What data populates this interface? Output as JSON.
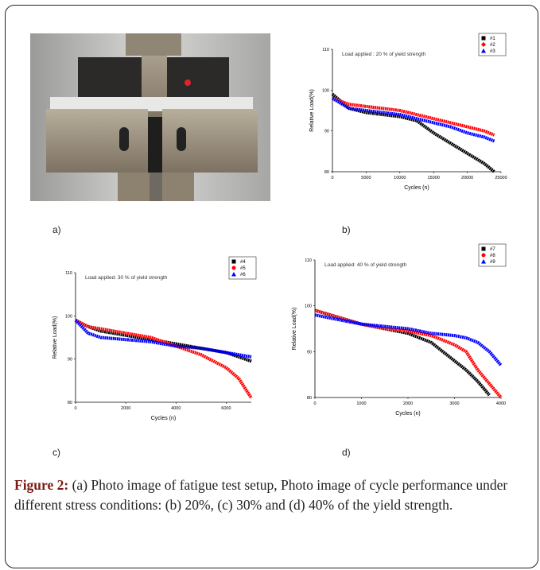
{
  "chart_data": [
    {
      "type": "line",
      "title": "Load applied : 20 % of yield strength",
      "xlabel": "Cycles (n)",
      "ylabel": "Relative Load(%)",
      "x": [
        0,
        2500,
        5000,
        7500,
        10000,
        12500,
        15000,
        17500,
        20000,
        22500,
        24000
      ],
      "xlim": [
        0,
        25000
      ],
      "xticks": [
        0,
        5000,
        10000,
        15000,
        20000,
        25000
      ],
      "ylim": [
        80,
        110
      ],
      "yticks": [
        80,
        90,
        100,
        110
      ],
      "legend": "upper right",
      "series": [
        {
          "name": "#1",
          "color": "#000000",
          "marker": "square",
          "values": [
            99,
            95.5,
            94.5,
            94,
            93.5,
            92.5,
            89.5,
            87,
            84.5,
            82,
            80
          ]
        },
        {
          "name": "#2",
          "color": "#ff0000",
          "marker": "diamond",
          "values": [
            98,
            96.5,
            96,
            95.5,
            95,
            94,
            93,
            92,
            91,
            90,
            89
          ]
        },
        {
          "name": "#3",
          "color": "#0000ff",
          "marker": "triangle",
          "values": [
            98,
            95.5,
            95,
            94.5,
            94,
            93,
            92,
            91,
            89.5,
            88.5,
            87.5
          ]
        }
      ]
    },
    {
      "type": "line",
      "title": "Load applied: 30 % of yield strength",
      "xlabel": "Cycles (n)",
      "ylabel": "Relative Load(%)",
      "x": [
        0,
        500,
        1000,
        2000,
        3000,
        4000,
        5000,
        5500,
        6000,
        6500,
        7000
      ],
      "xlim": [
        0,
        7000
      ],
      "xticks": [
        0,
        2000,
        4000,
        6000
      ],
      "ylim": [
        80,
        110
      ],
      "yticks": [
        80,
        90,
        100,
        110
      ],
      "legend": "upper right",
      "series": [
        {
          "name": "#4",
          "color": "#000000",
          "marker": "square",
          "values": [
            99,
            97.5,
            96.5,
            95.5,
            94.5,
            93.5,
            92.5,
            92,
            91.5,
            90.5,
            89.5
          ]
        },
        {
          "name": "#5",
          "color": "#ff0000",
          "marker": "circle",
          "values": [
            99,
            97.5,
            97,
            96,
            95,
            93,
            91,
            89.5,
            88,
            85.5,
            81
          ]
        },
        {
          "name": "#6",
          "color": "#0000ff",
          "marker": "triangle",
          "values": [
            99,
            96,
            95,
            94.5,
            94,
            93,
            92.5,
            92,
            91.5,
            91,
            90.5
          ]
        }
      ]
    },
    {
      "type": "line",
      "title": "Load applied: 40 % of yield strength",
      "xlabel": "Cycles (n)",
      "ylabel": "Relative Load(%)",
      "x": [
        0,
        500,
        1000,
        1500,
        2000,
        2500,
        3000,
        3250,
        3500,
        3750,
        4000
      ],
      "xlim": [
        0,
        4000
      ],
      "xticks": [
        0,
        1000,
        2000,
        3000,
        4000
      ],
      "ylim": [
        80,
        110
      ],
      "yticks": [
        80,
        90,
        100,
        110
      ],
      "legend": "upper right",
      "series": [
        {
          "name": "#7",
          "color": "#000000",
          "marker": "square",
          "values": [
            99,
            97.5,
            96,
            95,
            94,
            92,
            88,
            86,
            83.5,
            80.5,
            null
          ]
        },
        {
          "name": "#8",
          "color": "#ff0000",
          "marker": "circle",
          "values": [
            99,
            97.5,
            96,
            95,
            94.5,
            93.5,
            91.5,
            90,
            86,
            83,
            80
          ]
        },
        {
          "name": "#9",
          "color": "#0000ff",
          "marker": "triangle",
          "values": [
            98,
            97,
            96,
            95.5,
            95,
            94,
            93.5,
            93,
            92,
            90,
            87
          ]
        }
      ]
    }
  ],
  "panels": [
    "a)",
    "b)",
    "c)",
    "d)"
  ],
  "caption": {
    "label": "Figure 2:",
    "text": "(a) Photo image of fatigue test setup, Photo image of cycle performance under different stress conditions: (b) 20%, (c) 30% and (d) 40% of the yield strength."
  }
}
